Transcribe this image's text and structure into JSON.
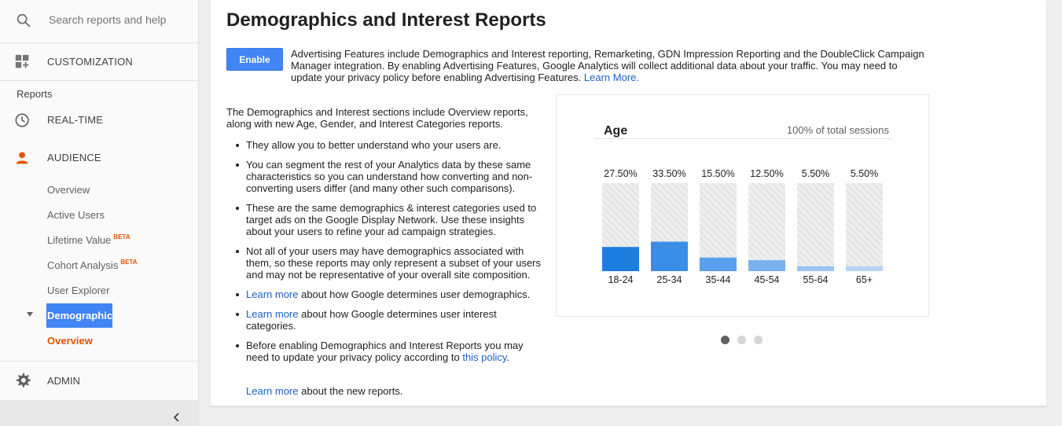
{
  "sidebar": {
    "search_placeholder": "Search reports and help",
    "customization": "CUSTOMIZATION",
    "section_label": "Reports",
    "realtime": "REAL-TIME",
    "audience": "AUDIENCE",
    "audience_items": [
      {
        "label": "Overview"
      },
      {
        "label": "Active Users"
      },
      {
        "label": "Lifetime Value",
        "badge": "BETA"
      },
      {
        "label": "Cohort Analysis",
        "badge": "BETA"
      },
      {
        "label": "User Explorer"
      }
    ],
    "selected_group": "Demographics",
    "selected_item": "Overview",
    "admin": "ADMIN",
    "icons": {
      "search": "search-icon",
      "customization": "dashboard-icon",
      "realtime": "clock-icon",
      "audience": "person-icon",
      "admin": "gear-icon",
      "collapse": "chevron-left-icon"
    },
    "accent_color": "#e65100",
    "selected_bg": "#4285f4"
  },
  "main": {
    "title": "Demographics and Interest Reports",
    "enable_label": "Enable",
    "intro_text": "Advertising Features include Demographics and Interest reporting, Remarketing, GDN Impression Reporting and the DoubleClick Campaign Manager integration. By enabling Advertising Features, Google Analytics will collect additional data about your traffic. You may need to update your privacy policy before enabling Advertising Features.",
    "intro_link": "Learn More.",
    "lead": "The Demographics and Interest sections include Overview reports, along with new Age, Gender, and Interest Categories reports.",
    "bullets": [
      {
        "text": "They allow you to better understand who your users are."
      },
      {
        "text": "You can segment the rest of your Analytics data by these same characteristics so you can understand how converting and non-converting users differ (and many other such comparisons)."
      },
      {
        "text": "These are the same demographics & interest categories used to target ads on the Google Display Network. Use these insights about your users to refine your ad campaign strategies."
      },
      {
        "text": "Not all of your users may have demographics associated with them, so these reports may only represent a subset of your users and may not be representative of your overall site composition."
      },
      {
        "link": "Learn more",
        "text": " about how Google determines user demographics."
      },
      {
        "link": "Learn more",
        "text": " about how Google determines user interest categories."
      },
      {
        "text": "Before enabling Demographics and Interest Reports you may need to update your privacy policy according to ",
        "link_after": "this policy",
        "tail": "."
      }
    ],
    "footer_link": "Learn more",
    "footer_text": " about the new reports.",
    "carousel_pages": 3,
    "carousel_active": 0
  },
  "chart_data": {
    "type": "bar",
    "title": "Age",
    "subtitle": "100% of total sessions",
    "categories": [
      "18-24",
      "25-34",
      "35-44",
      "45-54",
      "55-64",
      "65+"
    ],
    "values": [
      27.5,
      33.5,
      15.5,
      12.5,
      5.5,
      5.5
    ],
    "value_labels": [
      "27.50%",
      "33.50%",
      "15.50%",
      "12.50%",
      "5.50%",
      "5.50%"
    ],
    "ylim": [
      0,
      100
    ],
    "bar_colors": [
      "#1e7ee0",
      "#3b8ee8",
      "#5a9feb",
      "#7ab1ef",
      "#9cc3f2",
      "#b8d4f5"
    ],
    "background_pattern": "hatched-gray"
  }
}
